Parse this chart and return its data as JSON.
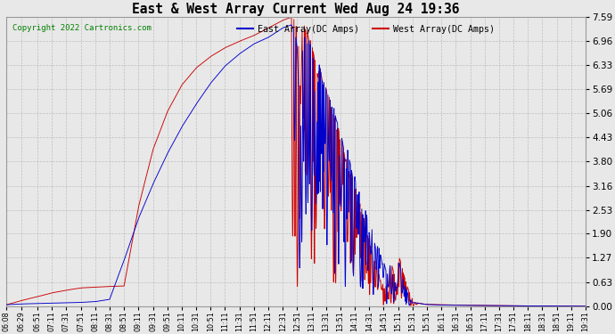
{
  "title": "East & West Array Current Wed Aug 24 19:36",
  "copyright": "Copyright 2022 Cartronics.com",
  "legend_east": "East Array(DC Amps)",
  "legend_west": "West Array(DC Amps)",
  "east_color": "#0000cc",
  "west_color": "#cc0000",
  "background_color": "#e8e8e8",
  "grid_color": "#bbbbbb",
  "yticks": [
    0.0,
    0.63,
    1.27,
    1.9,
    2.53,
    3.16,
    3.8,
    4.43,
    5.06,
    5.69,
    6.33,
    6.96,
    7.59
  ],
  "ymax": 7.59,
  "ymin": 0.0,
  "xtick_labels": [
    "06:08",
    "06:29",
    "06:51",
    "07:11",
    "07:31",
    "07:51",
    "08:11",
    "08:31",
    "08:51",
    "09:11",
    "09:31",
    "09:51",
    "10:11",
    "10:31",
    "10:51",
    "11:11",
    "11:31",
    "11:51",
    "12:11",
    "12:31",
    "12:51",
    "13:11",
    "13:31",
    "13:51",
    "14:11",
    "14:31",
    "14:51",
    "15:11",
    "15:31",
    "15:51",
    "16:11",
    "16:31",
    "16:51",
    "17:11",
    "17:31",
    "17:51",
    "18:11",
    "18:31",
    "18:51",
    "19:11",
    "19:31"
  ],
  "east_keypoints": [
    [
      0,
      0.04
    ],
    [
      21,
      0.06
    ],
    [
      43,
      0.07
    ],
    [
      63,
      0.08
    ],
    [
      83,
      0.09
    ],
    [
      103,
      0.1
    ],
    [
      123,
      0.12
    ],
    [
      143,
      0.18
    ],
    [
      163,
      1.2
    ],
    [
      183,
      2.3
    ],
    [
      203,
      3.2
    ],
    [
      223,
      4.0
    ],
    [
      243,
      4.7
    ],
    [
      263,
      5.3
    ],
    [
      283,
      5.85
    ],
    [
      303,
      6.3
    ],
    [
      323,
      6.62
    ],
    [
      343,
      6.88
    ],
    [
      363,
      7.05
    ],
    [
      375,
      7.2
    ],
    [
      383,
      7.3
    ],
    [
      390,
      7.35
    ],
    [
      395,
      7.38
    ],
    [
      400,
      7.2
    ],
    [
      403,
      6.8
    ],
    [
      406,
      5.2
    ],
    [
      408,
      4.6
    ],
    [
      411,
      6.9
    ],
    [
      413,
      7.1
    ],
    [
      416,
      6.8
    ],
    [
      418,
      7.0
    ],
    [
      421,
      6.9
    ],
    [
      423,
      6.7
    ],
    [
      425,
      6.5
    ],
    [
      427,
      6.6
    ],
    [
      429,
      4.5
    ],
    [
      431,
      5.0
    ],
    [
      433,
      6.4
    ],
    [
      435,
      6.2
    ],
    [
      437,
      6.0
    ],
    [
      439,
      5.8
    ],
    [
      441,
      5.9
    ],
    [
      443,
      5.7
    ],
    [
      445,
      5.5
    ],
    [
      447,
      5.6
    ],
    [
      449,
      5.4
    ],
    [
      451,
      5.2
    ],
    [
      453,
      5.3
    ],
    [
      455,
      5.1
    ],
    [
      457,
      4.9
    ],
    [
      459,
      4.8
    ],
    [
      461,
      3.5
    ],
    [
      463,
      4.6
    ],
    [
      465,
      4.4
    ],
    [
      467,
      4.2
    ],
    [
      469,
      3.8
    ],
    [
      471,
      3.6
    ],
    [
      473,
      4.1
    ],
    [
      475,
      3.9
    ],
    [
      477,
      3.7
    ],
    [
      479,
      3.5
    ],
    [
      481,
      3.2
    ],
    [
      483,
      3.4
    ],
    [
      485,
      3.1
    ],
    [
      487,
      2.9
    ],
    [
      489,
      3.0
    ],
    [
      491,
      2.8
    ],
    [
      493,
      2.5
    ],
    [
      495,
      2.3
    ],
    [
      497,
      2.6
    ],
    [
      499,
      2.4
    ],
    [
      501,
      2.2
    ],
    [
      503,
      1.9
    ],
    [
      505,
      2.1
    ],
    [
      507,
      2.0
    ],
    [
      509,
      1.8
    ],
    [
      511,
      1.6
    ],
    [
      513,
      1.4
    ],
    [
      515,
      1.6
    ],
    [
      517,
      1.5
    ],
    [
      519,
      1.3
    ],
    [
      521,
      1.1
    ],
    [
      523,
      1.2
    ],
    [
      525,
      1.0
    ],
    [
      527,
      0.9
    ],
    [
      529,
      0.8
    ],
    [
      531,
      1.1
    ],
    [
      533,
      1.0
    ],
    [
      535,
      0.85
    ],
    [
      537,
      0.72
    ],
    [
      539,
      0.6
    ],
    [
      541,
      0.5
    ],
    [
      543,
      1.2
    ],
    [
      545,
      1.1
    ],
    [
      547,
      0.95
    ],
    [
      549,
      0.8
    ],
    [
      551,
      0.65
    ],
    [
      553,
      0.5
    ],
    [
      555,
      0.4
    ],
    [
      557,
      0.3
    ],
    [
      559,
      0.22
    ],
    [
      561,
      0.15
    ],
    [
      563,
      0.1
    ],
    [
      580,
      0.05
    ],
    [
      600,
      0.03
    ],
    [
      650,
      0.02
    ],
    [
      700,
      0.01
    ],
    [
      803,
      0.0
    ]
  ],
  "west_keypoints": [
    [
      0,
      0.04
    ],
    [
      21,
      0.15
    ],
    [
      43,
      0.25
    ],
    [
      63,
      0.35
    ],
    [
      83,
      0.42
    ],
    [
      103,
      0.48
    ],
    [
      123,
      0.5
    ],
    [
      143,
      0.52
    ],
    [
      163,
      0.53
    ],
    [
      183,
      2.6
    ],
    [
      203,
      4.1
    ],
    [
      223,
      5.1
    ],
    [
      243,
      5.8
    ],
    [
      263,
      6.25
    ],
    [
      283,
      6.55
    ],
    [
      303,
      6.78
    ],
    [
      323,
      6.95
    ],
    [
      343,
      7.1
    ],
    [
      363,
      7.3
    ],
    [
      375,
      7.42
    ],
    [
      383,
      7.5
    ],
    [
      390,
      7.55
    ],
    [
      395,
      7.58
    ],
    [
      398,
      7.55
    ],
    [
      401,
      7.4
    ],
    [
      404,
      7.1
    ],
    [
      406,
      6.5
    ],
    [
      408,
      5.3
    ],
    [
      410,
      7.3
    ],
    [
      412,
      7.5
    ],
    [
      414,
      7.2
    ],
    [
      416,
      7.4
    ],
    [
      418,
      7.1
    ],
    [
      420,
      6.9
    ],
    [
      422,
      7.0
    ],
    [
      424,
      6.8
    ],
    [
      426,
      6.6
    ],
    [
      428,
      6.4
    ],
    [
      430,
      6.2
    ],
    [
      432,
      6.0
    ],
    [
      434,
      6.3
    ],
    [
      436,
      6.1
    ],
    [
      438,
      5.9
    ],
    [
      440,
      5.7
    ],
    [
      442,
      5.8
    ],
    [
      444,
      5.6
    ],
    [
      446,
      5.4
    ],
    [
      448,
      5.5
    ],
    [
      450,
      5.2
    ],
    [
      452,
      5.0
    ],
    [
      454,
      5.1
    ],
    [
      456,
      4.8
    ],
    [
      458,
      4.6
    ],
    [
      460,
      4.7
    ],
    [
      462,
      4.4
    ],
    [
      464,
      4.2
    ],
    [
      466,
      4.3
    ],
    [
      468,
      4.0
    ],
    [
      470,
      3.8
    ],
    [
      472,
      3.9
    ],
    [
      474,
      3.6
    ],
    [
      476,
      3.4
    ],
    [
      478,
      3.5
    ],
    [
      480,
      3.2
    ],
    [
      482,
      3.0
    ],
    [
      484,
      3.1
    ],
    [
      486,
      2.8
    ],
    [
      488,
      2.6
    ],
    [
      490,
      2.7
    ],
    [
      492,
      2.4
    ],
    [
      494,
      2.2
    ],
    [
      496,
      2.3
    ],
    [
      498,
      2.0
    ],
    [
      500,
      1.8
    ],
    [
      502,
      1.9
    ],
    [
      504,
      1.6
    ],
    [
      506,
      1.4
    ],
    [
      508,
      1.5
    ],
    [
      510,
      1.2
    ],
    [
      512,
      1.0
    ],
    [
      514,
      1.1
    ],
    [
      516,
      0.85
    ],
    [
      518,
      0.65
    ],
    [
      520,
      0.75
    ],
    [
      522,
      0.55
    ],
    [
      524,
      0.45
    ],
    [
      526,
      0.55
    ],
    [
      528,
      0.4
    ],
    [
      530,
      0.3
    ],
    [
      532,
      1.2
    ],
    [
      534,
      1.1
    ],
    [
      536,
      0.95
    ],
    [
      538,
      0.8
    ],
    [
      540,
      0.65
    ],
    [
      542,
      0.52
    ],
    [
      544,
      1.3
    ],
    [
      546,
      1.2
    ],
    [
      548,
      1.05
    ],
    [
      550,
      0.9
    ],
    [
      552,
      0.75
    ],
    [
      554,
      0.62
    ],
    [
      556,
      0.5
    ],
    [
      558,
      0.4
    ],
    [
      560,
      0.3
    ],
    [
      562,
      0.22
    ],
    [
      564,
      0.15
    ],
    [
      566,
      0.1
    ],
    [
      580,
      0.05
    ],
    [
      620,
      0.03
    ],
    [
      700,
      0.01
    ],
    [
      803,
      0.0
    ]
  ]
}
